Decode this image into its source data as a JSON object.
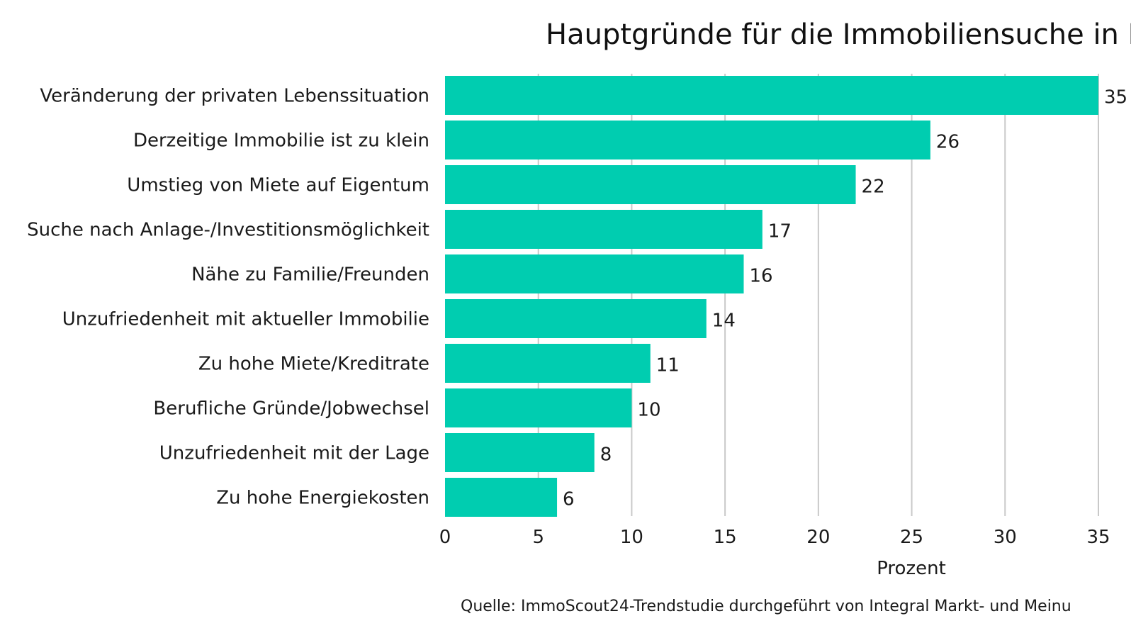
{
  "chart_data": {
    "type": "bar",
    "orientation": "horizontal",
    "title": "Hauptgründe für die Immobiliensuche in D",
    "categories": [
      "Veränderung der privaten Lebenssituation",
      "Derzeitige Immobilie ist zu klein",
      "Umstieg von Miete auf Eigentum",
      "Suche nach Anlage-/Investitionsmöglichkeit",
      "Nähe zu Familie/Freunden",
      "Unzufriedenheit mit aktueller Immobilie",
      "Zu hohe Miete/Kreditrate",
      "Berufliche Gründe/Jobwechsel",
      "Unzufriedenheit mit der Lage",
      "Zu hohe Energiekosten"
    ],
    "values": [
      35,
      26,
      22,
      17,
      16,
      14,
      11,
      10,
      8,
      6
    ],
    "data_labels": [
      "35",
      "26",
      "22",
      "17",
      "16",
      "14",
      "11",
      "10",
      "8",
      "6"
    ],
    "xlabel": "Prozent",
    "ylabel": "",
    "xlim": [
      0,
      35
    ],
    "xticks": [
      0,
      5,
      10,
      15,
      20,
      25,
      30,
      35
    ],
    "xtick_labels": [
      "0",
      "5",
      "10",
      "15",
      "20",
      "25",
      "30",
      "35"
    ],
    "grid": "vertical",
    "legend": "none",
    "bar_color": "#00cdb0",
    "gridline_color": "#c9c9c9",
    "source": "Quelle: ImmoScout24-Trendstudie durchgeführt von Integral Markt- und Meinu"
  }
}
